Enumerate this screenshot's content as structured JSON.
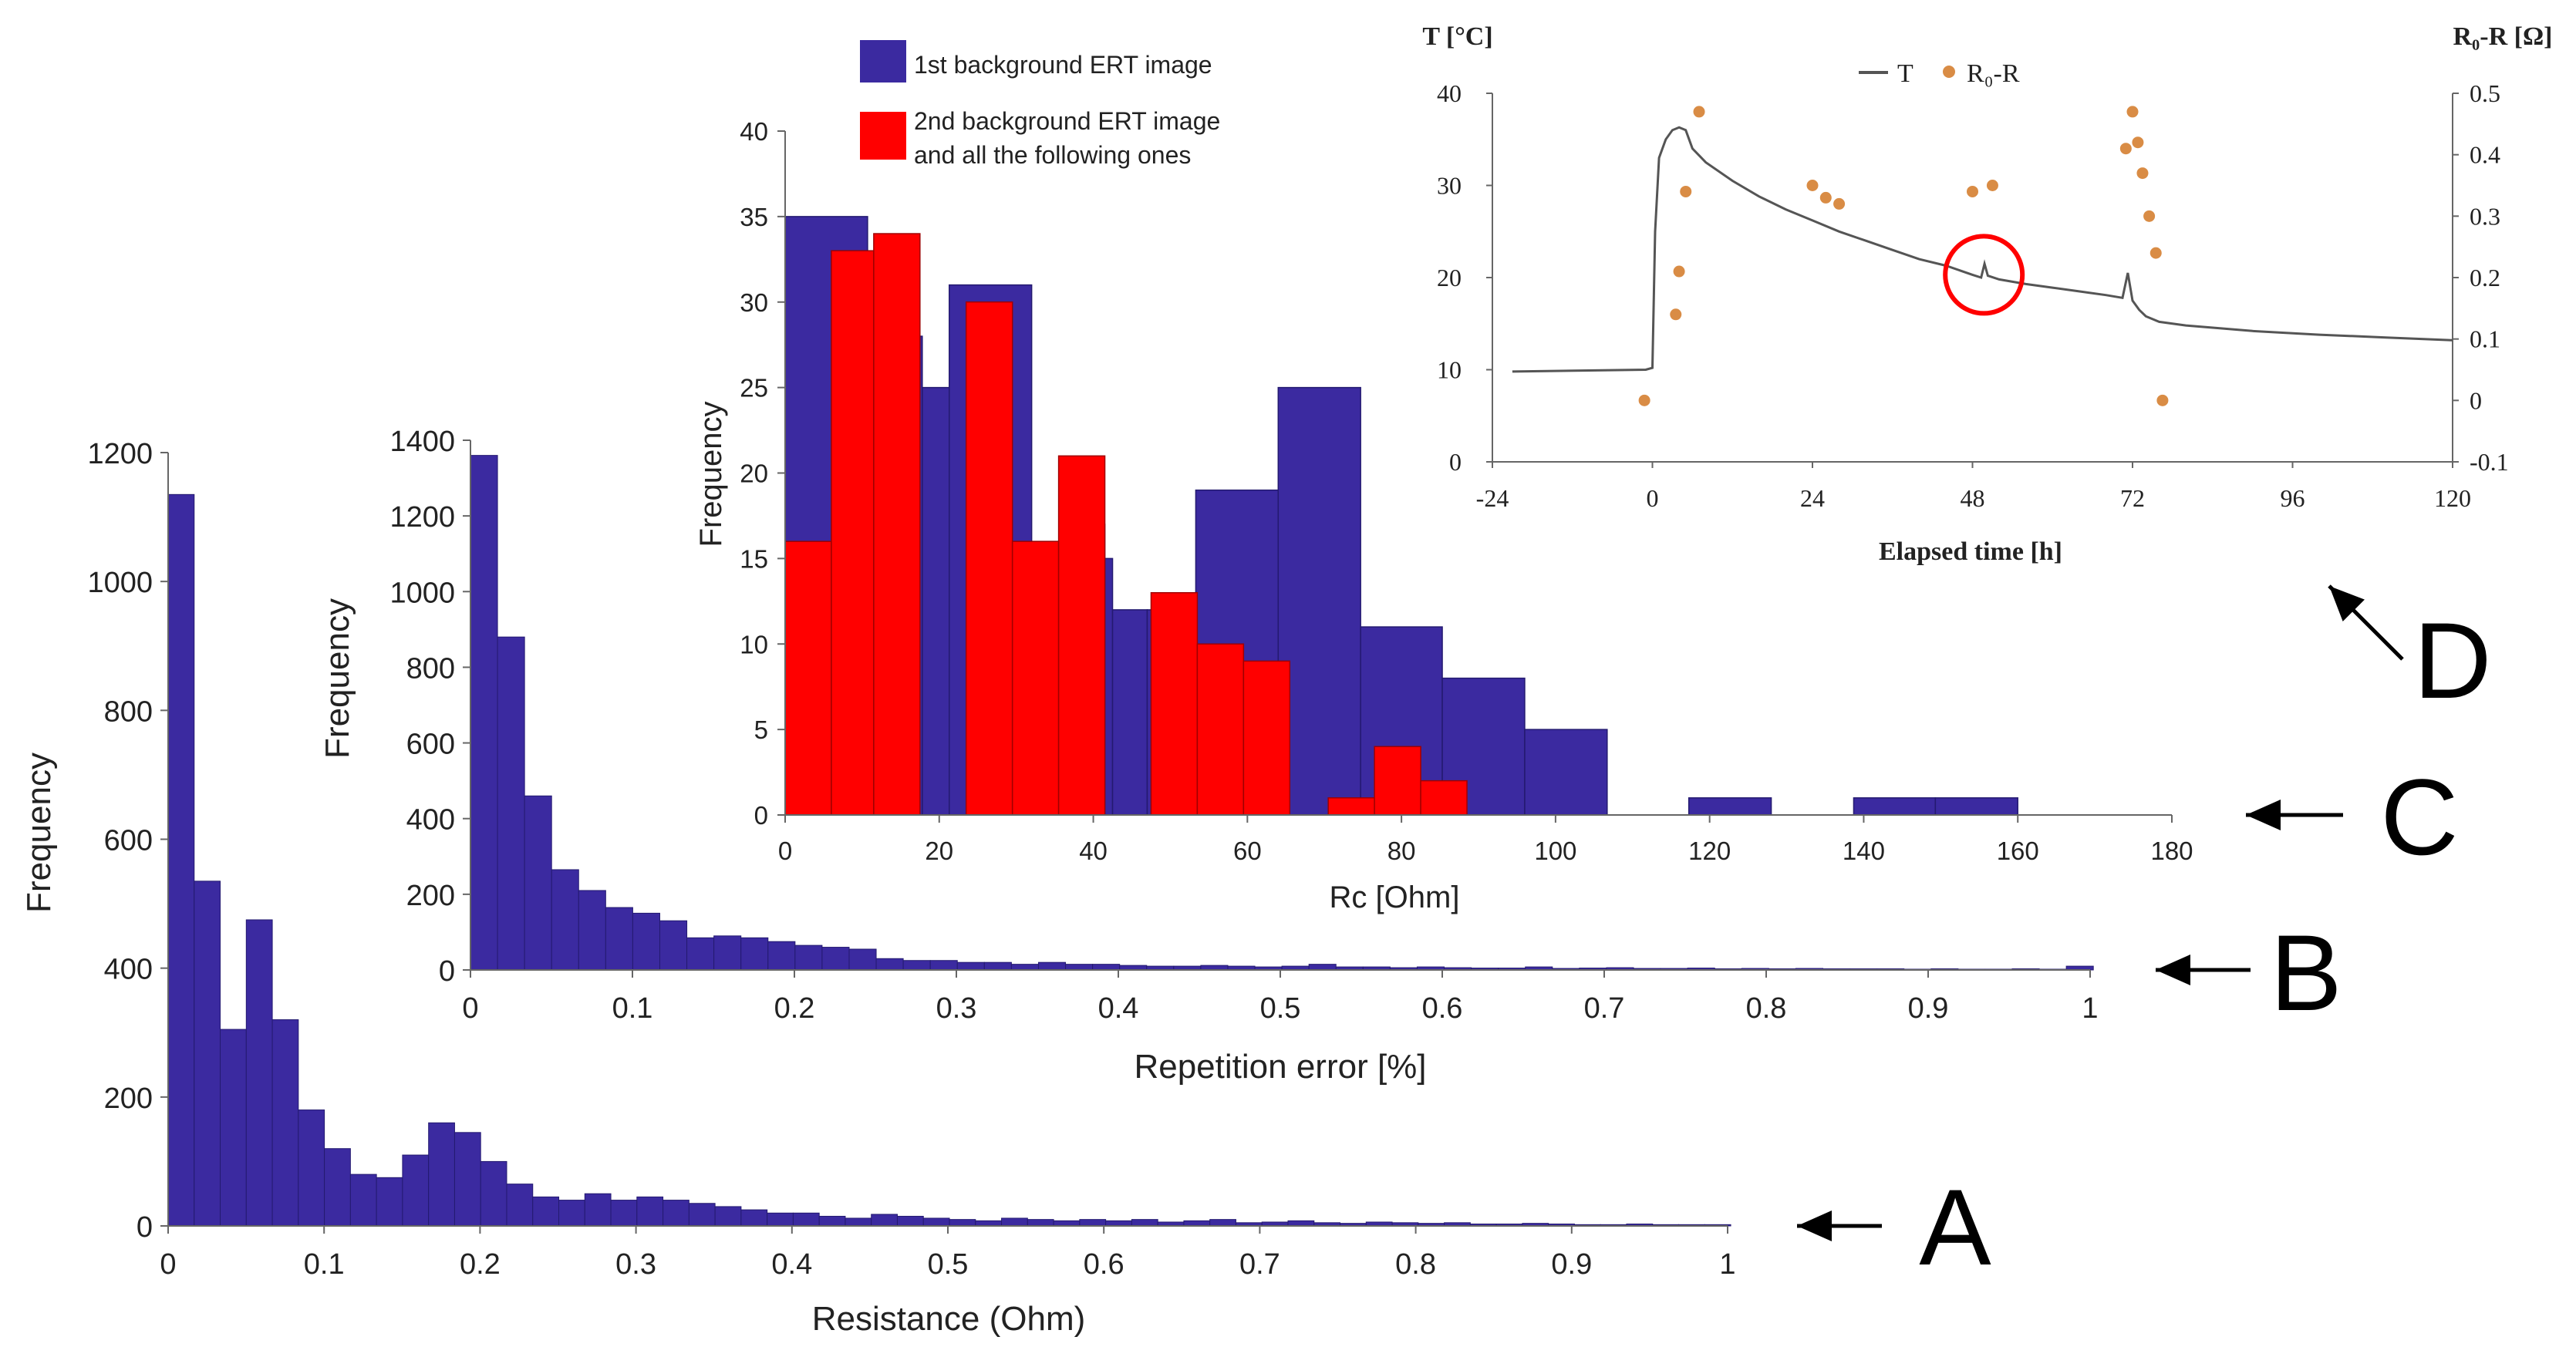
{
  "colors": {
    "navy": "#3b2aa0",
    "red": "#ff0000",
    "orange": "#d98c45",
    "line": "#555555",
    "axis": "#666666"
  },
  "chart_data": [
    {
      "id": "A",
      "type": "bar",
      "panel_label": "A",
      "xlabel": "Resistance (Ohm)",
      "ylabel": "Frequency",
      "xlim": [
        0,
        1
      ],
      "ylim": [
        0,
        1200
      ],
      "xticks": [
        0,
        0.1,
        0.2,
        0.3,
        0.4,
        0.5,
        0.6,
        0.7,
        0.8,
        0.9,
        1
      ],
      "xtick_labels": [
        "0",
        "0.1",
        "0.2",
        "0.3",
        "0.4",
        "0.5",
        "0.6",
        "0.7",
        "0.8",
        "0.9",
        "1"
      ],
      "yticks": [
        0,
        200,
        400,
        600,
        800,
        1000,
        1200
      ],
      "ytick_labels": [
        "0",
        "200",
        "400",
        "600",
        "800",
        "1000",
        "1200"
      ],
      "bin_start": 0,
      "bin_width": 0.0167,
      "values": [
        1135,
        535,
        305,
        475,
        320,
        180,
        120,
        80,
        75,
        110,
        160,
        145,
        100,
        65,
        45,
        40,
        50,
        40,
        45,
        40,
        35,
        30,
        25,
        20,
        20,
        15,
        12,
        18,
        15,
        12,
        10,
        8,
        12,
        10,
        8,
        10,
        8,
        10,
        6,
        8,
        10,
        5,
        6,
        8,
        5,
        4,
        6,
        5,
        4,
        5,
        3,
        3,
        4,
        3,
        2,
        2,
        3,
        2,
        2,
        2
      ]
    },
    {
      "id": "B",
      "type": "bar",
      "panel_label": "B",
      "xlabel": "Repetition error [%]",
      "ylabel": "Frequency",
      "xlim": [
        0,
        1
      ],
      "ylim": [
        0,
        1400
      ],
      "xticks": [
        0,
        0.1,
        0.2,
        0.3,
        0.4,
        0.5,
        0.6,
        0.7,
        0.8,
        0.9,
        1
      ],
      "xtick_labels": [
        "0",
        "0.1",
        "0.2",
        "0.3",
        "0.4",
        "0.5",
        "0.6",
        "0.7",
        "0.8",
        "0.9",
        "1"
      ],
      "yticks": [
        0,
        200,
        400,
        600,
        800,
        1000,
        1200,
        1400
      ],
      "ytick_labels": [
        "0",
        "200",
        "400",
        "600",
        "800",
        "1000",
        "1200",
        "1400"
      ],
      "bin_start": 0,
      "bin_width": 0.0167,
      "values": [
        1360,
        880,
        460,
        265,
        210,
        165,
        150,
        130,
        85,
        90,
        85,
        75,
        65,
        60,
        55,
        30,
        25,
        25,
        20,
        20,
        15,
        20,
        15,
        15,
        12,
        10,
        10,
        12,
        10,
        8,
        10,
        15,
        8,
        8,
        6,
        8,
        6,
        5,
        5,
        8,
        4,
        5,
        6,
        4,
        4,
        5,
        3,
        4,
        3,
        4,
        3,
        3,
        3,
        2,
        3,
        2,
        2,
        3,
        2,
        10
      ]
    },
    {
      "id": "C",
      "type": "bar",
      "panel_label": "C",
      "xlabel": "Rc [Ohm]",
      "ylabel": "Frequency",
      "xlim": [
        0,
        180
      ],
      "ylim": [
        0,
        40
      ],
      "xticks": [
        0,
        20,
        40,
        60,
        80,
        100,
        120,
        140,
        160,
        180
      ],
      "xtick_labels": [
        "0",
        "20",
        "40",
        "60",
        "80",
        "100",
        "120",
        "140",
        "160",
        "180"
      ],
      "yticks": [
        0,
        5,
        10,
        15,
        20,
        25,
        30,
        35,
        40
      ],
      "ytick_labels": [
        "0",
        "5",
        "10",
        "15",
        "20",
        "25",
        "30",
        "35",
        "40"
      ],
      "legend": [
        {
          "name": "1st background ERT image",
          "color": "#3b2aa0"
        },
        {
          "name": "2nd background ERT image",
          "name2": "and all the following ones",
          "color": "#ff0000"
        }
      ],
      "series": [
        {
          "name": "1st background ERT image",
          "bins": [
            [
              0,
              10.7,
              35
            ],
            [
              10.7,
              17.8,
              28
            ],
            [
              17.8,
              21.3,
              25
            ],
            [
              21.3,
              32,
              31
            ],
            [
              32,
              39,
              16
            ],
            [
              39,
              41.5,
              17
            ],
            [
              41.5,
              42.5,
              15
            ],
            [
              42.5,
              47,
              12
            ],
            [
              47,
              53.3,
              12
            ],
            [
              53.3,
              64,
              19
            ],
            [
              64,
              74.7,
              25
            ],
            [
              74.7,
              85.3,
              11
            ],
            [
              85.3,
              96,
              8
            ],
            [
              96,
              106.7,
              5
            ],
            [
              117.3,
              128,
              1
            ],
            [
              138.7,
              149.3,
              1
            ],
            [
              149.3,
              160,
              1
            ]
          ]
        },
        {
          "name": "2nd background ERT image and all the following ones",
          "bins": [
            [
              0,
              6,
              16
            ],
            [
              6,
              11.5,
              33
            ],
            [
              11.5,
              17.5,
              34
            ],
            [
              23.5,
              29.5,
              30
            ],
            [
              29.5,
              35.5,
              16
            ],
            [
              35.5,
              41.5,
              21
            ],
            [
              47.5,
              53.5,
              13
            ],
            [
              53.5,
              59.5,
              10
            ],
            [
              59.5,
              65.5,
              9
            ],
            [
              70.5,
              76.5,
              1
            ],
            [
              76.5,
              82.5,
              4
            ],
            [
              82.5,
              88.5,
              2
            ]
          ]
        }
      ]
    },
    {
      "id": "D",
      "type": "line",
      "panel_label": "D",
      "xlabel": "Elapsed time [h]",
      "ylabel_left": "T [°C]",
      "ylabel_right": "R₀-R [Ω]",
      "xlim": [
        -24,
        120
      ],
      "ylim_left": [
        0,
        40
      ],
      "ylim_right": [
        -0.1,
        0.5
      ],
      "xticks": [
        -24,
        0,
        24,
        48,
        72,
        96,
        120
      ],
      "xtick_labels": [
        "-24",
        "0",
        "24",
        "48",
        "72",
        "96",
        "120"
      ],
      "yticks_left": [
        0,
        10,
        20,
        30,
        40
      ],
      "ytick_left_labels": [
        "0",
        "10",
        "20",
        "30",
        "40"
      ],
      "yticks_right": [
        -0.1,
        0,
        0.1,
        0.2,
        0.3,
        0.4,
        0.5
      ],
      "ytick_right_labels": [
        "-0.1",
        "0",
        "0.1",
        "0.2",
        "0.3",
        "0.4",
        "0.5"
      ],
      "legend": [
        "T",
        "R₀-R"
      ],
      "series": [
        {
          "name": "T",
          "axis": "left",
          "points": [
            [
              -21,
              9.8
            ],
            [
              -1,
              10
            ],
            [
              0,
              10.2
            ],
            [
              0.4,
              25
            ],
            [
              1,
              33
            ],
            [
              2,
              35
            ],
            [
              3,
              36
            ],
            [
              4,
              36.3
            ],
            [
              5,
              36
            ],
            [
              6,
              34
            ],
            [
              8,
              32.5
            ],
            [
              12,
              30.5
            ],
            [
              16,
              28.8
            ],
            [
              20,
              27.4
            ],
            [
              24,
              26.2
            ],
            [
              28,
              25
            ],
            [
              32,
              24
            ],
            [
              36,
              23
            ],
            [
              40,
              22
            ],
            [
              44,
              21.3
            ],
            [
              48,
              20.3
            ],
            [
              49.3,
              20
            ],
            [
              49.8,
              21.5
            ],
            [
              50.3,
              20.2
            ],
            [
              52,
              19.8
            ],
            [
              56,
              19.3
            ],
            [
              60,
              18.9
            ],
            [
              64,
              18.5
            ],
            [
              68,
              18.1
            ],
            [
              70.5,
              17.8
            ],
            [
              71.3,
              20.5
            ],
            [
              72,
              17.5
            ],
            [
              73,
              16.5
            ],
            [
              74,
              15.8
            ],
            [
              76,
              15.2
            ],
            [
              80,
              14.8
            ],
            [
              90,
              14.2
            ],
            [
              100,
              13.8
            ],
            [
              110,
              13.5
            ],
            [
              120,
              13.2
            ]
          ]
        },
        {
          "name": "R₀-R",
          "axis": "right",
          "points": [
            [
              -1.2,
              0
            ],
            [
              3.5,
              0.14
            ],
            [
              4,
              0.21
            ],
            [
              5,
              0.34
            ],
            [
              7,
              0.47
            ],
            [
              24,
              0.35
            ],
            [
              26,
              0.33
            ],
            [
              28,
              0.32
            ],
            [
              48,
              0.34
            ],
            [
              51,
              0.35
            ],
            [
              71,
              0.41
            ],
            [
              72,
              0.47
            ],
            [
              72.8,
              0.42
            ],
            [
              73.5,
              0.37
            ],
            [
              74.5,
              0.3
            ],
            [
              75.5,
              0.24
            ],
            [
              76.5,
              0
            ]
          ]
        }
      ],
      "annotation": {
        "type": "circle",
        "x": 49.7,
        "y": 20.3,
        "label": ""
      }
    }
  ]
}
